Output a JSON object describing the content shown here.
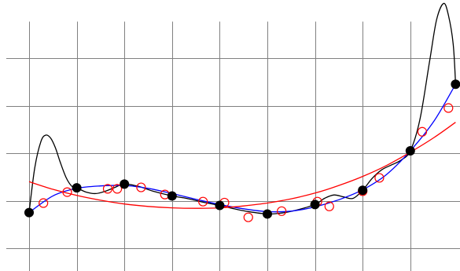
{
  "chart_data": {
    "type": "scatter",
    "title": "",
    "xlabel": "",
    "ylabel": "",
    "grid": true,
    "xlim": [
      -0.5,
      9.0
    ],
    "ylim": [
      0.0,
      5.5
    ],
    "grid_x": [
      0,
      1,
      2,
      3,
      4,
      5,
      6,
      7,
      8
    ],
    "grid_y": [
      0.5,
      1.5,
      2.5,
      3.5,
      4.5
    ],
    "series": [
      {
        "style": "filled-markers",
        "color": "#000000",
        "x": [
          0.0,
          1.0,
          2.0,
          3.0,
          4.0,
          5.0,
          6.0,
          7.0,
          8.0,
          8.95
        ],
        "y": [
          1.25,
          1.77,
          1.85,
          1.6,
          1.4,
          1.22,
          1.42,
          1.72,
          2.55,
          3.95
        ]
      },
      {
        "style": "open-markers",
        "color": "#ff0000",
        "x": [
          0.3,
          0.8,
          1.65,
          1.85,
          2.35,
          2.85,
          3.65,
          4.1,
          4.6,
          5.3,
          6.05,
          6.3,
          7.0,
          7.35,
          8.25,
          8.8
        ],
        "y": [
          1.45,
          1.68,
          1.75,
          1.75,
          1.78,
          1.63,
          1.48,
          1.46,
          1.15,
          1.28,
          1.48,
          1.38,
          1.7,
          1.98,
          2.95,
          3.45
        ]
      },
      {
        "style": "line",
        "color": "#000000",
        "x": [
          0.0,
          0.12,
          0.25,
          0.35,
          0.45,
          0.55,
          0.65,
          0.78,
          0.9,
          1.0,
          1.2,
          1.4,
          1.6,
          1.8,
          2.0,
          2.3,
          2.6,
          3.0,
          3.3,
          3.6,
          4.0,
          4.3,
          4.6,
          5.0,
          5.3,
          5.6,
          6.0,
          6.2,
          6.4,
          6.6,
          6.8,
          7.0,
          7.2,
          7.4,
          7.6,
          7.8,
          8.0,
          8.2,
          8.4,
          8.55,
          8.7,
          8.8,
          8.9,
          8.95
        ],
        "y": [
          1.25,
          2.2,
          2.75,
          2.88,
          2.82,
          2.62,
          2.32,
          1.98,
          1.8,
          1.77,
          1.68,
          1.65,
          1.7,
          1.78,
          1.85,
          1.8,
          1.7,
          1.6,
          1.55,
          1.48,
          1.4,
          1.33,
          1.27,
          1.22,
          1.24,
          1.3,
          1.42,
          1.55,
          1.62,
          1.58,
          1.55,
          1.72,
          1.97,
          2.15,
          2.25,
          2.35,
          2.55,
          3.2,
          4.4,
          5.3,
          5.65,
          5.4,
          4.8,
          3.95
        ]
      },
      {
        "style": "line",
        "color": "#0000ff",
        "x": [
          0.0,
          0.5,
          1.0,
          1.5,
          2.0,
          2.5,
          3.0,
          3.5,
          4.0,
          4.5,
          5.0,
          5.5,
          6.0,
          6.5,
          7.0,
          7.5,
          8.0,
          8.5,
          8.95
        ],
        "y": [
          1.25,
          1.6,
          1.76,
          1.81,
          1.82,
          1.76,
          1.65,
          1.53,
          1.42,
          1.33,
          1.27,
          1.28,
          1.37,
          1.52,
          1.73,
          2.05,
          2.55,
          3.18,
          3.95
        ]
      },
      {
        "style": "line",
        "color": "#ff0000",
        "x": [
          0.0,
          0.5,
          1.0,
          1.5,
          2.0,
          2.5,
          3.0,
          3.5,
          4.0,
          4.5,
          5.0,
          5.5,
          6.0,
          6.5,
          7.0,
          7.5,
          8.0,
          8.5,
          8.95
        ],
        "y": [
          1.9,
          1.74,
          1.61,
          1.51,
          1.43,
          1.38,
          1.35,
          1.34,
          1.35,
          1.39,
          1.45,
          1.54,
          1.66,
          1.82,
          2.01,
          2.24,
          2.52,
          2.83,
          3.15
        ]
      }
    ]
  }
}
